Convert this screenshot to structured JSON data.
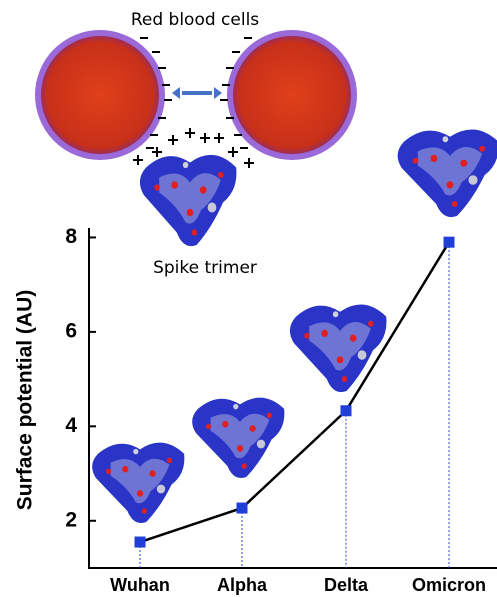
{
  "chart_data": {
    "type": "line",
    "annotations": [
      "Red blood cells",
      "Spike trimer"
    ],
    "y_label": "Surface potential (AU)",
    "categories": [
      "Wuhan",
      "Alpha",
      "Delta",
      "Omicron"
    ],
    "series": [
      {
        "values": [
          1.55,
          2.27,
          4.33,
          7.9
        ],
        "color": "#1f3fd8"
      }
    ],
    "line_color": "#000000",
    "ylim": [
      1,
      8.2
    ],
    "yticks": [
      2,
      4,
      6,
      8
    ],
    "grid": false
  }
}
